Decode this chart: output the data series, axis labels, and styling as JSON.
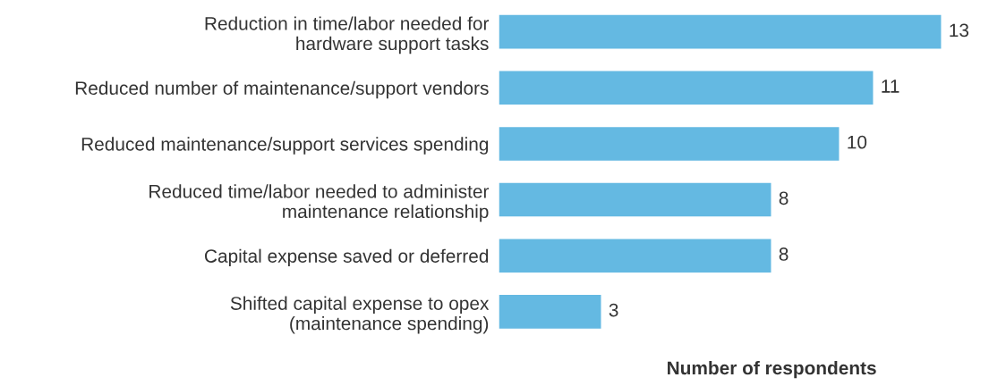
{
  "chart_data": {
    "type": "bar",
    "orientation": "horizontal",
    "xlabel": "Number of respondents",
    "categories": [
      "Reduction in time/labor needed for\nhardware support tasks",
      "Reduced number of maintenance/support vendors",
      "Reduced maintenance/support services spending",
      "Reduced time/labor needed to administer\nmaintenance relationship",
      "Capital expense saved or deferred",
      "Shifted capital expense to opex\n(maintenance spending)"
    ],
    "values": [
      13,
      11,
      10,
      8,
      8,
      3
    ],
    "color": "#64b9e2",
    "data_labels": true,
    "grid": false,
    "legend": false
  }
}
